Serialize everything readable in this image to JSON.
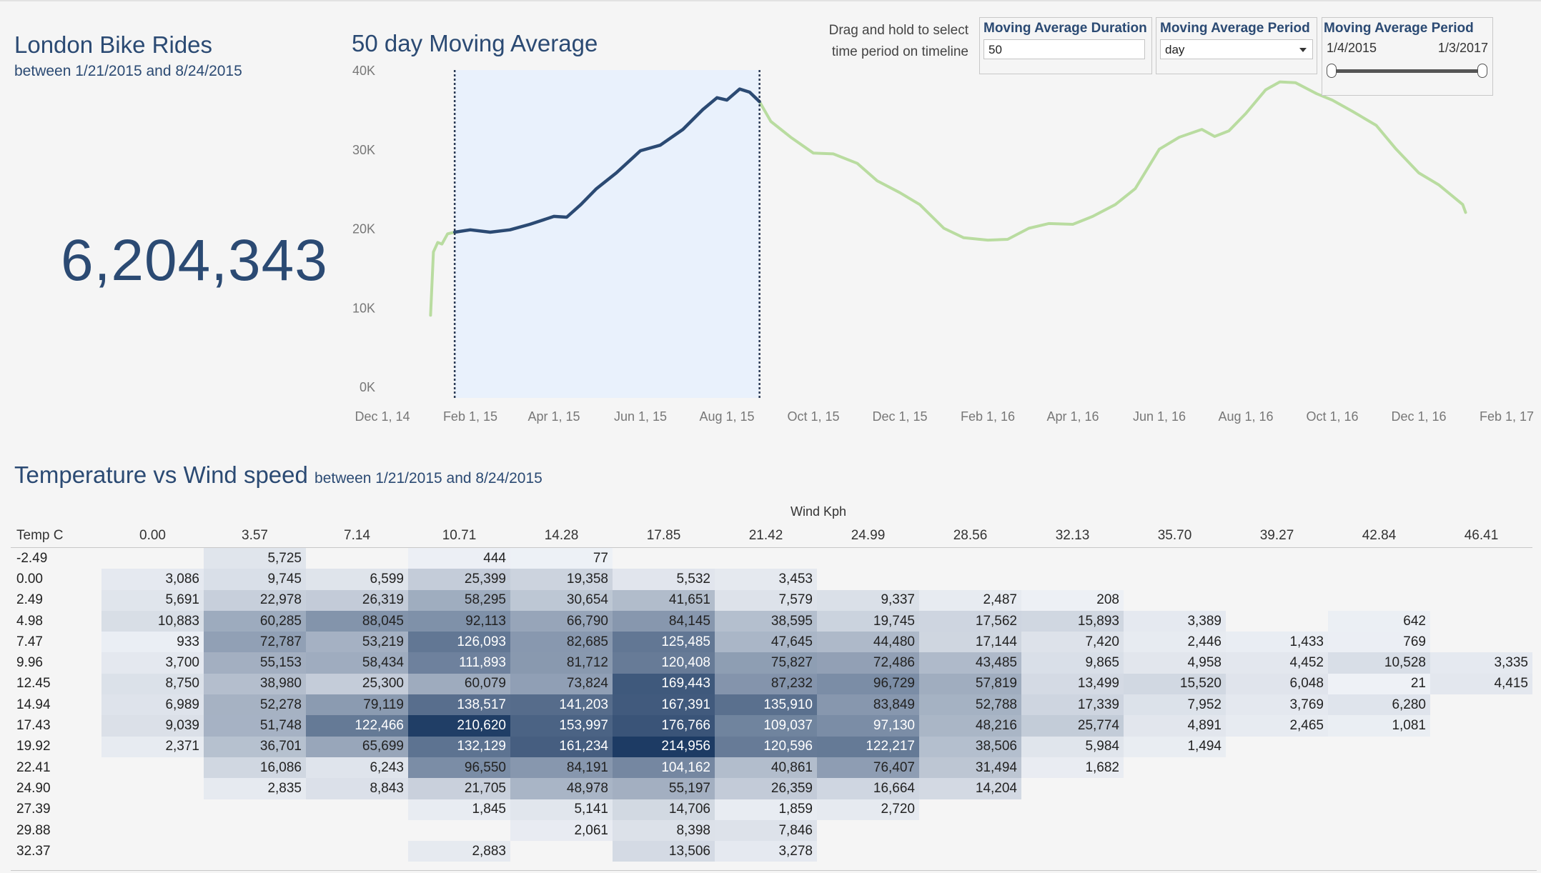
{
  "kpi": {
    "title": "London Bike Rides",
    "subtitle": "between 1/21/2015 and 8/24/2015",
    "value": "6,204,343"
  },
  "chart": {
    "title": "50 day Moving Average",
    "drag_hint": "Drag and hold to select time period on timeline"
  },
  "controls": {
    "duration": {
      "title": "Moving Average Duration",
      "value": "50"
    },
    "period": {
      "title": "Moving Average Period",
      "selected": "day"
    },
    "range": {
      "title": "Moving Average Period",
      "start": "1/4/2015",
      "end": "1/3/2017"
    }
  },
  "colors": {
    "highlight_line": "#2b4a73",
    "context_line": "#b9dca0",
    "selection_band": "#e9f1fc",
    "heat_scale_low": "#eef1f6",
    "heat_scale_high": "#1d3b64"
  },
  "chart_data": {
    "type": "line",
    "x_unit": "date",
    "xlim": [
      "2014-12-01",
      "2017-02-01"
    ],
    "ylim": [
      0,
      40000
    ],
    "y_ticks": [
      "0K",
      "10K",
      "20K",
      "30K",
      "40K"
    ],
    "x_ticks": [
      {
        "date": "2014-12-01",
        "label": "Dec 1, 14"
      },
      {
        "date": "2015-02-01",
        "label": "Feb 1, 15"
      },
      {
        "date": "2015-04-01",
        "label": "Apr 1, 15"
      },
      {
        "date": "2015-06-01",
        "label": "Jun 1, 15"
      },
      {
        "date": "2015-08-01",
        "label": "Aug 1, 15"
      },
      {
        "date": "2015-10-01",
        "label": "Oct 1, 15"
      },
      {
        "date": "2015-12-01",
        "label": "Dec 1, 15"
      },
      {
        "date": "2016-02-01",
        "label": "Feb 1, 16"
      },
      {
        "date": "2016-04-01",
        "label": "Apr 1, 16"
      },
      {
        "date": "2016-06-01",
        "label": "Jun 1, 16"
      },
      {
        "date": "2016-08-01",
        "label": "Aug 1, 16"
      },
      {
        "date": "2016-10-01",
        "label": "Oct 1, 16"
      },
      {
        "date": "2016-12-01",
        "label": "Dec 1, 16"
      },
      {
        "date": "2017-02-01",
        "label": "Feb 1, 17"
      }
    ],
    "selection": [
      "2015-01-21",
      "2015-08-24"
    ],
    "grid": false,
    "series": [
      {
        "points": [
          [
            "2015-01-04",
            9000
          ],
          [
            "2015-01-06",
            17000
          ],
          [
            "2015-01-09",
            18200
          ],
          [
            "2015-01-12",
            18000
          ],
          [
            "2015-01-16",
            19300
          ],
          [
            "2015-01-21",
            19500
          ],
          [
            "2015-02-01",
            19800
          ],
          [
            "2015-02-15",
            19500
          ],
          [
            "2015-03-01",
            19800
          ],
          [
            "2015-03-15",
            20500
          ],
          [
            "2015-04-01",
            21500
          ],
          [
            "2015-04-10",
            21400
          ],
          [
            "2015-04-20",
            23000
          ],
          [
            "2015-05-01",
            25000
          ],
          [
            "2015-05-15",
            27000
          ],
          [
            "2015-06-01",
            29800
          ],
          [
            "2015-06-15",
            30500
          ],
          [
            "2015-07-01",
            32500
          ],
          [
            "2015-07-15",
            35000
          ],
          [
            "2015-07-25",
            36500
          ],
          [
            "2015-08-01",
            36200
          ],
          [
            "2015-08-10",
            37600
          ],
          [
            "2015-08-17",
            37200
          ],
          [
            "2015-08-24",
            36000
          ],
          [
            "2015-09-01",
            33500
          ],
          [
            "2015-09-15",
            31500
          ],
          [
            "2015-10-01",
            29500
          ],
          [
            "2015-10-15",
            29400
          ],
          [
            "2015-11-01",
            28200
          ],
          [
            "2015-11-15",
            26000
          ],
          [
            "2015-12-01",
            24500
          ],
          [
            "2015-12-15",
            23000
          ],
          [
            "2016-01-01",
            20000
          ],
          [
            "2016-01-15",
            18800
          ],
          [
            "2016-02-01",
            18500
          ],
          [
            "2016-02-15",
            18600
          ],
          [
            "2016-03-01",
            20000
          ],
          [
            "2016-03-15",
            20600
          ],
          [
            "2016-04-01",
            20500
          ],
          [
            "2016-04-15",
            21500
          ],
          [
            "2016-05-01",
            23000
          ],
          [
            "2016-05-15",
            25000
          ],
          [
            "2016-06-01",
            30000
          ],
          [
            "2016-06-15",
            31500
          ],
          [
            "2016-07-01",
            32500
          ],
          [
            "2016-07-10",
            31600
          ],
          [
            "2016-07-20",
            32300
          ],
          [
            "2016-08-01",
            34500
          ],
          [
            "2016-08-15",
            37500
          ],
          [
            "2016-08-25",
            38500
          ],
          [
            "2016-09-05",
            38400
          ],
          [
            "2016-09-20",
            37000
          ],
          [
            "2016-10-01",
            36200
          ],
          [
            "2016-10-15",
            34800
          ],
          [
            "2016-11-01",
            33000
          ],
          [
            "2016-11-15",
            30000
          ],
          [
            "2016-12-01",
            27000
          ],
          [
            "2016-12-15",
            25500
          ],
          [
            "2017-01-01",
            23000
          ],
          [
            "2017-01-03",
            22000
          ]
        ]
      }
    ]
  },
  "heatmap": {
    "title": "Temperature vs Wind speed",
    "subtitle": "between 1/21/2015 and 8/24/2015",
    "x_title": "Wind Kph",
    "row_header": "Temp C",
    "columns": [
      "0.00",
      "3.57",
      "7.14",
      "10.71",
      "14.28",
      "17.85",
      "21.42",
      "24.99",
      "28.56",
      "32.13",
      "35.70",
      "39.27",
      "42.84",
      "46.41"
    ],
    "rows": [
      {
        "label": "-2.49",
        "cells": [
          "",
          "5,725",
          "",
          "444",
          "77",
          "",
          "",
          "",
          "",
          "",
          "",
          "",
          "",
          ""
        ]
      },
      {
        "label": "0.00",
        "cells": [
          "3,086",
          "9,745",
          "6,599",
          "25,399",
          "19,358",
          "5,532",
          "3,453",
          "",
          "",
          "",
          "",
          "",
          "",
          ""
        ]
      },
      {
        "label": "2.49",
        "cells": [
          "5,691",
          "22,978",
          "26,319",
          "58,295",
          "30,654",
          "41,651",
          "7,579",
          "9,337",
          "2,487",
          "208",
          "",
          "",
          "",
          ""
        ]
      },
      {
        "label": "4.98",
        "cells": [
          "10,883",
          "60,285",
          "88,045",
          "92,113",
          "66,790",
          "84,145",
          "38,595",
          "19,745",
          "17,562",
          "15,893",
          "3,389",
          "",
          "642",
          ""
        ]
      },
      {
        "label": "7.47",
        "cells": [
          "933",
          "72,787",
          "53,219",
          "126,093",
          "82,685",
          "125,485",
          "47,645",
          "44,480",
          "17,144",
          "7,420",
          "2,446",
          "1,433",
          "769",
          ""
        ]
      },
      {
        "label": "9.96",
        "cells": [
          "3,700",
          "55,153",
          "58,434",
          "111,893",
          "81,712",
          "120,408",
          "75,827",
          "72,486",
          "43,485",
          "9,865",
          "4,958",
          "4,452",
          "10,528",
          "3,335"
        ]
      },
      {
        "label": "12.45",
        "cells": [
          "8,750",
          "38,980",
          "25,300",
          "60,079",
          "73,824",
          "169,443",
          "87,232",
          "96,729",
          "57,819",
          "13,499",
          "15,520",
          "6,048",
          "21",
          "4,415"
        ]
      },
      {
        "label": "14.94",
        "cells": [
          "6,989",
          "52,278",
          "79,119",
          "138,517",
          "141,203",
          "167,391",
          "135,910",
          "83,849",
          "52,788",
          "17,339",
          "7,952",
          "3,769",
          "6,280",
          ""
        ]
      },
      {
        "label": "17.43",
        "cells": [
          "9,039",
          "51,748",
          "122,466",
          "210,620",
          "153,997",
          "176,766",
          "109,037",
          "97,130",
          "48,216",
          "25,774",
          "4,891",
          "2,465",
          "1,081",
          ""
        ]
      },
      {
        "label": "19.92",
        "cells": [
          "2,371",
          "36,701",
          "65,699",
          "132,129",
          "161,234",
          "214,956",
          "120,596",
          "122,217",
          "38,506",
          "5,984",
          "1,494",
          "",
          "",
          ""
        ]
      },
      {
        "label": "22.41",
        "cells": [
          "",
          "16,086",
          "6,243",
          "96,550",
          "84,191",
          "104,162",
          "40,861",
          "76,407",
          "31,494",
          "1,682",
          "",
          "",
          "",
          ""
        ]
      },
      {
        "label": "24.90",
        "cells": [
          "",
          "2,835",
          "8,843",
          "21,705",
          "48,978",
          "55,197",
          "26,359",
          "16,664",
          "14,204",
          "",
          "",
          "",
          "",
          ""
        ]
      },
      {
        "label": "27.39",
        "cells": [
          "",
          "",
          "",
          "1,845",
          "5,141",
          "14,706",
          "1,859",
          "2,720",
          "",
          "",
          "",
          "",
          "",
          ""
        ]
      },
      {
        "label": "29.88",
        "cells": [
          "",
          "",
          "",
          "",
          "2,061",
          "8,398",
          "7,846",
          "",
          "",
          "",
          "",
          "",
          "",
          ""
        ]
      },
      {
        "label": "32.37",
        "cells": [
          "",
          "",
          "",
          "2,883",
          "",
          "13,506",
          "3,278",
          "",
          "",
          "",
          "",
          "",
          "",
          ""
        ]
      }
    ]
  }
}
